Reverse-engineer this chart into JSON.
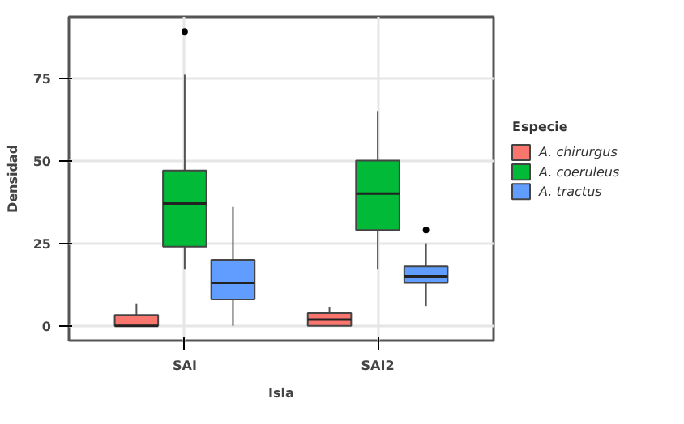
{
  "chart_data": {
    "type": "box",
    "xlabel": "Isla",
    "ylabel": "Densidad",
    "legend_title": "Especie",
    "categories": [
      "SAI",
      "SAI2"
    ],
    "ylim": [
      -4.5,
      93.5
    ],
    "yticks": [
      0,
      25,
      50,
      75
    ],
    "grid": true,
    "legend": "right",
    "series": [
      {
        "name": "A. chirurgus",
        "color": "#f8766d",
        "boxes": [
          {
            "low": 0,
            "q1": 0,
            "median": 0,
            "q3": 3.3,
            "high": 6.6
          },
          {
            "low": 0,
            "q1": 0,
            "median": 1.9,
            "q3": 3.8,
            "high": 5.7
          }
        ]
      },
      {
        "name": "A. coeruleus",
        "color": "#00ba38",
        "boxes": [
          {
            "low": 17,
            "q1": 24,
            "median": 37,
            "q3": 47,
            "high": 76,
            "outliers": [
              89
            ]
          },
          {
            "low": 17,
            "q1": 29,
            "median": 40,
            "q3": 50,
            "high": 65
          }
        ]
      },
      {
        "name": "A. tractus",
        "color": "#619cff",
        "boxes": [
          {
            "low": 0,
            "q1": 8,
            "median": 13,
            "q3": 20,
            "high": 36
          },
          {
            "low": 6,
            "q1": 13,
            "median": 15,
            "q3": 18,
            "high": 25,
            "outliers": [
              29
            ]
          }
        ]
      }
    ]
  }
}
